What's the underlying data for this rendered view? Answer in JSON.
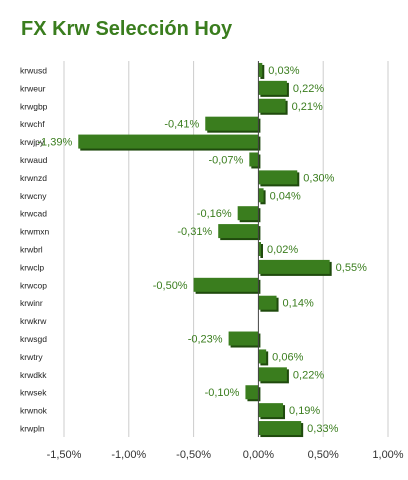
{
  "chart_data": {
    "type": "bar",
    "orientation": "horizontal",
    "title": "FX Krw Selección Hoy",
    "categories": [
      "krwusd",
      "krweur",
      "krwgbp",
      "krwchf",
      "krwjpy",
      "krwaud",
      "krwnzd",
      "krwcny",
      "krwcad",
      "krwmxn",
      "krwbrl",
      "krwclp",
      "krwcop",
      "krwinr",
      "krwkrw",
      "krwsgd",
      "krwtry",
      "krwdkk",
      "krwsek",
      "krwnok",
      "krwpln"
    ],
    "values": [
      0.03,
      0.22,
      0.21,
      -0.41,
      -1.39,
      -0.07,
      0.3,
      0.04,
      -0.16,
      -0.31,
      0.02,
      0.55,
      -0.5,
      0.14,
      0.0,
      -0.23,
      0.06,
      0.22,
      -0.1,
      0.19,
      0.33
    ],
    "value_labels": [
      "0,03%",
      "0,22%",
      "0,21%",
      "-0,41%",
      "-1,39%",
      "-0,07%",
      "0,30%",
      "0,04%",
      "-0,16%",
      "-0,31%",
      "0,02%",
      "0,55%",
      "-0,50%",
      "0,14%",
      "",
      "-0,23%",
      "0,06%",
      "0,22%",
      "-0,10%",
      "0,19%",
      "0,33%"
    ],
    "xlim": [
      -1.5,
      1.0
    ],
    "x_ticks": [
      -1.5,
      -1.0,
      -0.5,
      0.0,
      0.5,
      1.0
    ],
    "x_tick_labels": [
      "-1,50%",
      "-1,00%",
      "-0,50%",
      "0,00%",
      "0,50%",
      "1,00%"
    ],
    "grid": true,
    "bar_color": "#3a7d1e",
    "bar_shadow_color": "#1f4a0d",
    "label_color": "#3a7d1e"
  }
}
